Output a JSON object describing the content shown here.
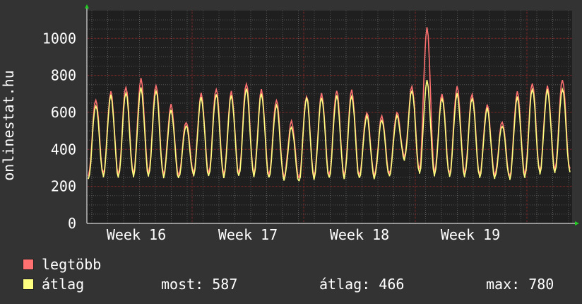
{
  "chart_data": {
    "type": "line",
    "ylabel": "onlinestat.hu",
    "ylim": [
      0,
      1150
    ],
    "yticks": [
      0,
      200,
      400,
      600,
      800,
      1000
    ],
    "xticks": [
      "Week 16",
      "Week 17",
      "Week 18",
      "Week 19"
    ],
    "grid": true,
    "series": [
      {
        "name": "legtöbb",
        "color": "#ff7070",
        "daily_peak": [
          670,
          710,
          740,
          780,
          750,
          640,
          550,
          700,
          730,
          710,
          760,
          720,
          670,
          550,
          690,
          700,
          720,
          720,
          600,
          580,
          600,
          740,
          1060,
          700,
          740,
          700,
          640,
          550,
          710,
          760,
          740,
          780
        ],
        "daily_low": [
          255,
          270,
          265,
          270,
          270,
          265,
          260,
          275,
          270,
          265,
          270,
          270,
          260,
          250,
          245,
          255,
          260,
          260,
          260,
          260,
          270,
          360,
          290,
          275,
          270,
          270,
          265,
          260,
          255,
          265,
          285,
          290
        ]
      },
      {
        "name": "átlag",
        "color": "#ffff80",
        "daily_peak": [
          640,
          690,
          710,
          730,
          720,
          610,
          530,
          680,
          700,
          690,
          730,
          700,
          640,
          520,
          680,
          680,
          690,
          690,
          580,
          560,
          580,
          720,
          770,
          680,
          700,
          680,
          620,
          530,
          680,
          730,
          720,
          730
        ],
        "daily_low": [
          235,
          255,
          250,
          255,
          255,
          250,
          245,
          260,
          255,
          250,
          255,
          255,
          245,
          235,
          225,
          240,
          245,
          245,
          245,
          245,
          255,
          345,
          270,
          260,
          255,
          255,
          250,
          245,
          240,
          250,
          270,
          275
        ]
      }
    ]
  },
  "legend": [
    {
      "label": "legtöbb",
      "color": "#ff7070"
    },
    {
      "label": "átlag",
      "color": "#ffff80"
    }
  ],
  "stats": {
    "now": "most: 587",
    "avg": "átlag: 466",
    "max": "max: 780"
  }
}
